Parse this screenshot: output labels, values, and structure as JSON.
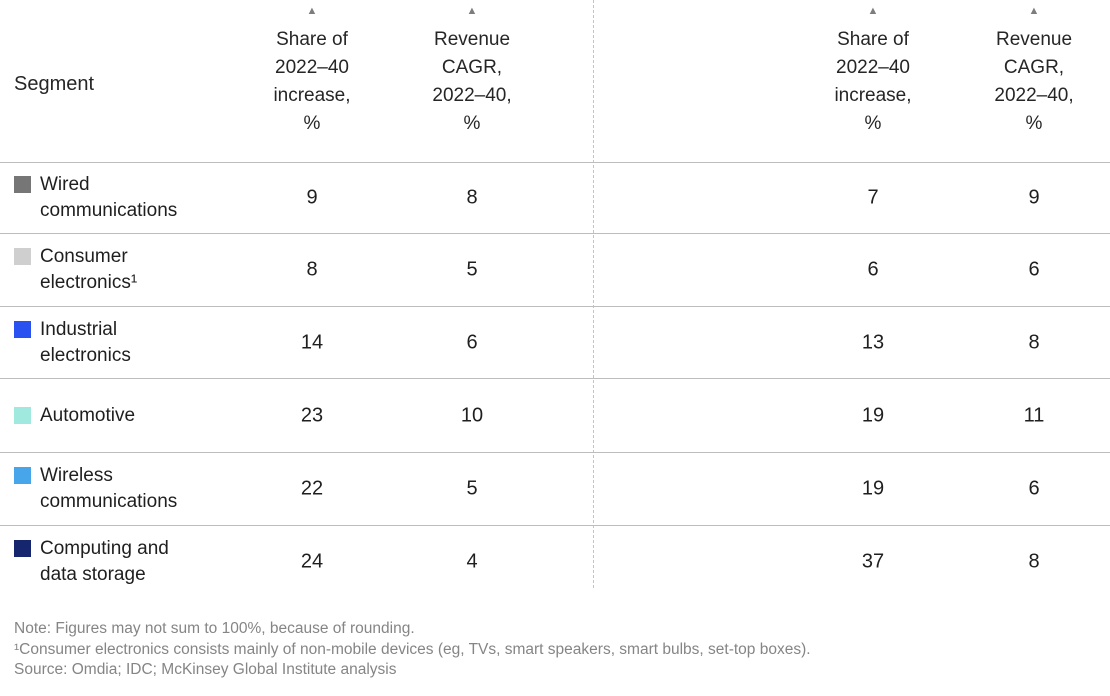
{
  "chart_data": {
    "type": "table",
    "title": "",
    "column_groups": [
      "left",
      "right"
    ],
    "columns": [
      "Segment",
      "Share of 2022–40 increase, % (left)",
      "Revenue CAGR, 2022–40, % (left)",
      "Share of 2022–40 increase, % (right)",
      "Revenue CAGR, 2022–40, % (right)"
    ],
    "rows": [
      {
        "segment": "Wired communications",
        "left_share_of_increase_pct": 9,
        "left_revenue_cagr_pct": 8,
        "right_share_of_increase_pct": 7,
        "right_revenue_cagr_pct": 9
      },
      {
        "segment": "Consumer electronics",
        "left_share_of_increase_pct": 8,
        "left_revenue_cagr_pct": 5,
        "right_share_of_increase_pct": 6,
        "right_revenue_cagr_pct": 6
      },
      {
        "segment": "Industrial electronics",
        "left_share_of_increase_pct": 14,
        "left_revenue_cagr_pct": 6,
        "right_share_of_increase_pct": 13,
        "right_revenue_cagr_pct": 8
      },
      {
        "segment": "Automotive",
        "left_share_of_increase_pct": 23,
        "left_revenue_cagr_pct": 10,
        "right_share_of_increase_pct": 19,
        "right_revenue_cagr_pct": 11
      },
      {
        "segment": "Wireless communications",
        "left_share_of_increase_pct": 22,
        "left_revenue_cagr_pct": 5,
        "right_share_of_increase_pct": 19,
        "right_revenue_cagr_pct": 6
      },
      {
        "segment": "Computing and data storage",
        "left_share_of_increase_pct": 24,
        "left_revenue_cagr_pct": 4,
        "right_share_of_increase_pct": 37,
        "right_revenue_cagr_pct": 8
      }
    ]
  },
  "icons": {
    "sort_up": "▲"
  },
  "table": {
    "segment_header": "Segment",
    "headers": [
      "Share of\n2022–40\nincrease,\n%",
      "Revenue\nCAGR,\n2022–40,\n%",
      "Share of\n2022–40\nincrease,\n%",
      "Revenue\nCAGR,\n2022–40,\n%"
    ],
    "rows": [
      {
        "segment": "Wired\ncommunications",
        "color": "#767676",
        "values": [
          "9",
          "8",
          "7",
          "9"
        ]
      },
      {
        "segment": "Consumer\nelectronics¹",
        "color": "#cfcfcf",
        "values": [
          "8",
          "5",
          "6",
          "6"
        ]
      },
      {
        "segment": "Industrial\nelectronics",
        "color": "#2a52f0",
        "values": [
          "14",
          "6",
          "13",
          "8"
        ]
      },
      {
        "segment": "Automotive",
        "color": "#9fe9de",
        "values": [
          "23",
          "10",
          "19",
          "11"
        ]
      },
      {
        "segment": "Wireless\ncommunications",
        "color": "#47a6e9",
        "values": [
          "22",
          "5",
          "19",
          "6"
        ]
      },
      {
        "segment": "Computing and\ndata storage",
        "color": "#15266e",
        "values": [
          "24",
          "4",
          "37",
          "8"
        ]
      }
    ]
  },
  "footer": {
    "note": "Note: Figures may not sum to 100%, because of rounding.",
    "footnote": "¹Consumer electronics consists mainly of non-mobile devices (eg, TVs, smart speakers, smart bulbs, set-top boxes).",
    "source": "Source: Omdia; IDC; McKinsey Global Institute analysis"
  }
}
